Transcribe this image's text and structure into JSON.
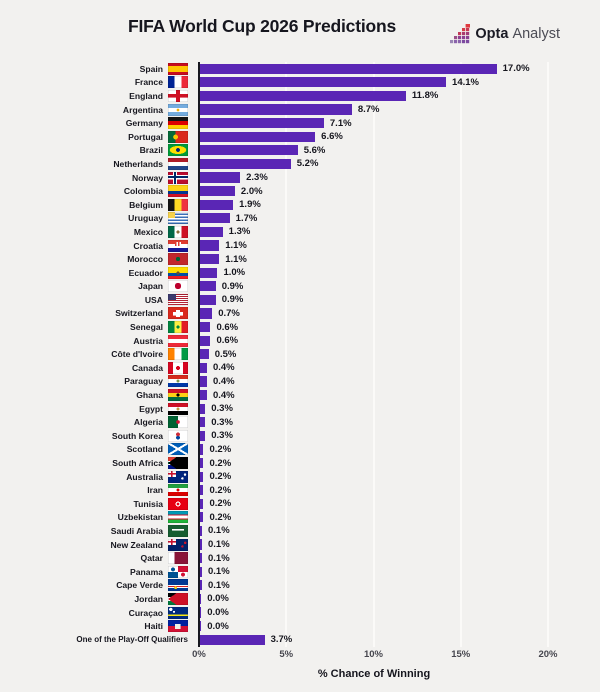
{
  "header": {
    "title": "FIFA World Cup 2026 Predictions",
    "logo": {
      "brand_bold": "Opta",
      "brand_light": "Analyst"
    }
  },
  "colors": {
    "background": "#f2f1ef",
    "bar": "#5a26b5",
    "axis_line": "#17171f",
    "gridline": "#fbfaf8",
    "logo_red": "#e0393e",
    "logo_purple": "#7d4aa0"
  },
  "chart_data": {
    "type": "bar",
    "orientation": "horizontal",
    "title": "FIFA World Cup 2026 Predictions",
    "xlabel": "% Chance of Winning",
    "xlim": [
      0,
      20.6
    ],
    "grid": true,
    "x_ticks": [
      {
        "value": 0,
        "label": "0%"
      },
      {
        "value": 5,
        "label": "5%"
      },
      {
        "value": 10,
        "label": "10%"
      },
      {
        "value": 15,
        "label": "15%"
      },
      {
        "value": 20,
        "label": "20%"
      }
    ],
    "rows": [
      {
        "label": "Spain",
        "value": 17.0,
        "display": "17.0%",
        "flag_name": "spain-flag-icon",
        "flag": "linear-gradient(180deg,#c60b1e 0 27%,#ffc400 27% 73%,#c60b1e 73%)"
      },
      {
        "label": "France",
        "value": 14.1,
        "display": "14.1%",
        "flag_name": "france-flag-icon",
        "flag": "linear-gradient(90deg,#002395 0 33%,#ffffff 33% 67%,#ed2939 67%)"
      },
      {
        "label": "England",
        "value": 11.8,
        "display": "11.8%",
        "flag_name": "england-flag-icon",
        "flag": "linear-gradient(#ce1124,#ce1124) 50% 0/20% 100% no-repeat, linear-gradient(#ce1124,#ce1124) 0 50%/100% 30% no-repeat, #ffffff"
      },
      {
        "label": "Argentina",
        "value": 8.7,
        "display": "8.7%",
        "flag_name": "argentina-flag-icon",
        "flag": "radial-gradient(circle at 50% 50%,#f6b40e 0 11%,transparent 12%), linear-gradient(180deg,#74acdf 0 33%,#ffffff 33% 67%,#74acdf 67%)"
      },
      {
        "label": "Germany",
        "value": 7.1,
        "display": "7.1%",
        "flag_name": "germany-flag-icon",
        "flag": "linear-gradient(180deg,#141414 0 33%,#dd0000 33% 67%,#ffce00 67%)"
      },
      {
        "label": "Portugal",
        "value": 6.6,
        "display": "6.6%",
        "flag_name": "portugal-flag-icon",
        "flag": "radial-gradient(circle at 38% 50%,#f7c600 0 17%,transparent 18%), linear-gradient(90deg,#046a38 0 38%,#da291c 38%)"
      },
      {
        "label": "Brazil",
        "value": 5.6,
        "display": "5.6%",
        "flag_name": "brazil-flag-icon",
        "flag": "radial-gradient(circle at 50% 50%,#012776 0 16%,transparent 17%), radial-gradient(42% 34% at 50% 50%,#fedf00 0 96%,transparent 100%), #009b3a"
      },
      {
        "label": "Netherlands",
        "value": 5.2,
        "display": "5.2%",
        "flag_name": "netherlands-flag-icon",
        "flag": "linear-gradient(180deg,#ae1c28 0 33%,#ffffff 33% 67%,#21468b 67%)"
      },
      {
        "label": "Norway",
        "value": 2.3,
        "display": "2.3%",
        "flag_name": "norway-flag-icon",
        "flag": "linear-gradient(#002868,#002868) 32% 0/11% 100% no-repeat, linear-gradient(#002868,#002868) 0 50%/100% 18% no-repeat, linear-gradient(#ffffff,#ffffff) 32% 0/22% 100% no-repeat, linear-gradient(#ffffff,#ffffff) 0 50%/100% 38% no-repeat, #ba0c2f"
      },
      {
        "label": "Colombia",
        "value": 2.0,
        "display": "2.0%",
        "flag_name": "colombia-flag-icon",
        "flag": "linear-gradient(180deg,#fcd116 0 50%,#003893 50% 75%,#ce1126 75%)"
      },
      {
        "label": "Belgium",
        "value": 1.9,
        "display": "1.9%",
        "flag_name": "belgium-flag-icon",
        "flag": "linear-gradient(90deg,#141414 0 33%,#fdda24 33% 67%,#ef3340 67%)"
      },
      {
        "label": "Uruguay",
        "value": 1.7,
        "display": "1.7%",
        "flag_name": "uruguay-flag-icon",
        "flag": "linear-gradient(#f6d24b,#f6d24b) 0 0/35% 50% no-repeat, repeating-linear-gradient(180deg,#ffffff 0 1.5px,#3a6fb7 1.5px 3px)"
      },
      {
        "label": "Mexico",
        "value": 1.3,
        "display": "1.3%",
        "flag_name": "mexico-flag-icon",
        "flag": "radial-gradient(circle at 50% 50%,#8a6d3b 0 13%,transparent 14%), linear-gradient(90deg,#006847 0 33%,#ffffff 33% 67%,#ce1126 67%)"
      },
      {
        "label": "Croatia",
        "value": 1.1,
        "display": "1.1%",
        "flag_name": "croatia-flag-icon",
        "flag": "repeating-linear-gradient(90deg,#e03c31 0 1.5px,#ffffff 1.5px 3px) 50% 2px/6px 4px no-repeat, linear-gradient(180deg,#e03c31 0 33%,#ffffff 33% 67%,#171796 67%)"
      },
      {
        "label": "Morocco",
        "value": 1.1,
        "display": "1.1%",
        "flag_name": "morocco-flag-icon",
        "flag": "radial-gradient(circle at 50% 50%,#006233 0 18%,transparent 19%), #c1272d"
      },
      {
        "label": "Ecuador",
        "value": 1.0,
        "display": "1.0%",
        "flag_name": "ecuador-flag-icon",
        "flag": "radial-gradient(circle at 50% 50%,#6b4f2e 0 13%,transparent 14%), linear-gradient(180deg,#ffdd00 0 50%,#034ea2 50% 75%,#ed1c24 75%)"
      },
      {
        "label": "Japan",
        "value": 0.9,
        "display": "0.9%",
        "flag_name": "japan-flag-icon",
        "flag": "radial-gradient(circle at 50% 50%,#bc002d 0 27%,transparent 28%), #ffffff"
      },
      {
        "label": "USA",
        "value": 0.9,
        "display": "0.9%",
        "flag_name": "usa-flag-icon",
        "flag": "linear-gradient(#3c3b6e,#3c3b6e) 0 0/42% 54% no-repeat, repeating-linear-gradient(180deg,#b22234 0 1px,#ffffff 1px 2px)"
      },
      {
        "label": "Switzerland",
        "value": 0.7,
        "display": "0.7%",
        "flag_name": "switzerland-flag-icon",
        "flag": "linear-gradient(#ffffff,#ffffff) 50% 50%/22% 62% no-repeat, linear-gradient(#ffffff,#ffffff) 50% 50%/52% 30% no-repeat, #da291c"
      },
      {
        "label": "Senegal",
        "value": 0.6,
        "display": "0.6%",
        "flag_name": "senegal-flag-icon",
        "flag": "radial-gradient(circle at 50% 50%,#00853f 0 13%,transparent 14%), linear-gradient(90deg,#00853f 0 33%,#fdef42 33% 67%,#e31b23 67%)"
      },
      {
        "label": "Austria",
        "value": 0.6,
        "display": "0.6%",
        "flag_name": "austria-flag-icon",
        "flag": "linear-gradient(180deg,#ed2939 0 33%,#ffffff 33% 67%,#ed2939 67%)"
      },
      {
        "label": "Côte d'Ivoire",
        "value": 0.5,
        "display": "0.5%",
        "flag_name": "cote-divoire-flag-icon",
        "flag": "linear-gradient(90deg,#ff8200 0 33%,#ffffff 33% 67%,#009a44 67%)"
      },
      {
        "label": "Canada",
        "value": 0.4,
        "display": "0.4%",
        "flag_name": "canada-flag-icon",
        "flag": "radial-gradient(circle at 50% 50%,#d80621 0 17%,transparent 18%), linear-gradient(90deg,#d80621 0 26%,#ffffff 26% 74%,#d80621 74%)"
      },
      {
        "label": "Paraguay",
        "value": 0.4,
        "display": "0.4%",
        "flag_name": "paraguay-flag-icon",
        "flag": "radial-gradient(circle at 50% 50%,#7c9a4e 0 12%,transparent 13%), linear-gradient(180deg,#d52b1e 0 33%,#ffffff 33% 67%,#0038a8 67%)"
      },
      {
        "label": "Ghana",
        "value": 0.4,
        "display": "0.4%",
        "flag_name": "ghana-flag-icon",
        "flag": "radial-gradient(circle at 50% 50%,#000000 0 13%,transparent 14%), linear-gradient(180deg,#ce1126 0 33%,#fcd116 33% 67%,#006b3f 67%)"
      },
      {
        "label": "Egypt",
        "value": 0.3,
        "display": "0.3%",
        "flag_name": "egypt-flag-icon",
        "flag": "radial-gradient(circle at 50% 50%,#c09c43 0 12%,transparent 13%), linear-gradient(180deg,#ce1126 0 33%,#ffffff 33% 67%,#000000 67%)"
      },
      {
        "label": "Algeria",
        "value": 0.3,
        "display": "0.3%",
        "flag_name": "algeria-flag-icon",
        "flag": "radial-gradient(circle at 50% 50%,#d21034 0 15%,transparent 16%), linear-gradient(90deg,#006233 0 50%,#ffffff 50%)"
      },
      {
        "label": "South Korea",
        "value": 0.3,
        "display": "0.3%",
        "flag_name": "south-korea-flag-icon",
        "flag": "radial-gradient(circle at 50% 36%,#cd2e3a 0 15%,transparent 16%), radial-gradient(circle at 50% 64%,#0047a0 0 15%,transparent 16%), #ffffff"
      },
      {
        "label": "Scotland",
        "value": 0.2,
        "display": "0.2%",
        "flag_name": "scotland-flag-icon",
        "flag": "linear-gradient(to bottom right,transparent 0 45%,#ffffff 45% 55%,transparent 55%), linear-gradient(to top right,transparent 0 45%,#ffffff 45% 55%,transparent 55%), #005eb8"
      },
      {
        "label": "South Africa",
        "value": 0.2,
        "display": "0.2%",
        "flag_name": "south-africa-flag-icon",
        "flag": "conic-gradient(from 55deg at 0% 50%,#000000 0 70deg,transparent 70deg), linear-gradient(180deg,#e03c31 0 33%,#ffffff 33% 40%,#007749 40% 60%,#ffffff 60% 67%,#001489 67%)"
      },
      {
        "label": "Australia",
        "value": 0.2,
        "display": "0.2%",
        "flag_name": "australia-flag-icon",
        "flag": "radial-gradient(circle at 72% 62%,#ffffff 0 7%,transparent 8%), radial-gradient(circle at 85% 30%,#ffffff 0 6%,transparent 7%), linear-gradient(#c8102e,#c8102e) 3.2px 0/1.6px 6px no-repeat, linear-gradient(#c8102e,#c8102e) 0 2.2px/8px 1.6px no-repeat, linear-gradient(#ffffff,#ffffff) 0 0/8px 6px no-repeat, #00247d"
      },
      {
        "label": "Iran",
        "value": 0.2,
        "display": "0.2%",
        "flag_name": "iran-flag-icon",
        "flag": "radial-gradient(circle at 50% 50%,#da0000 0 12%,transparent 13%), linear-gradient(180deg,#239f40 0 33%,#ffffff 33% 67%,#da0000 67%)"
      },
      {
        "label": "Tunisia",
        "value": 0.2,
        "display": "0.2%",
        "flag_name": "tunisia-flag-icon",
        "flag": "radial-gradient(circle at 50% 50%,#e70013 0 11%,transparent 12%), radial-gradient(circle at 50% 50%,#ffffff 0 21%,transparent 22%), #e70013"
      },
      {
        "label": "Uzbekistan",
        "value": 0.2,
        "display": "0.2%",
        "flag_name": "uzbekistan-flag-icon",
        "flag": "linear-gradient(180deg,#0099b5 0 31%,#ce1126 31% 37%,#ffffff 37% 63%,#ce1126 63% 69%,#1eb53a 69%)"
      },
      {
        "label": "Saudi Arabia",
        "value": 0.1,
        "display": "0.1%",
        "flag_name": "saudi-arabia-flag-icon",
        "flag": "linear-gradient(#ffffff,#ffffff) 50% 42%/62% 1.6px no-repeat, #165d31"
      },
      {
        "label": "New Zealand",
        "value": 0.1,
        "display": "0.1%",
        "flag_name": "new-zealand-flag-icon",
        "flag": "radial-gradient(circle at 72% 62%,#cc142b 0 7%,transparent 8%), radial-gradient(circle at 86% 32%,#cc142b 0 6%,transparent 7%), linear-gradient(#c8102e,#c8102e) 3.2px 0/1.6px 6px no-repeat, linear-gradient(#c8102e,#c8102e) 0 2.2px/8px 1.6px no-repeat, linear-gradient(#ffffff,#ffffff) 0 0/8px 6px no-repeat, #012169"
      },
      {
        "label": "Qatar",
        "value": 0.1,
        "display": "0.1%",
        "flag_name": "qatar-flag-icon",
        "flag": "linear-gradient(90deg,#ffffff 0 32%,#8a1538 32%)"
      },
      {
        "label": "Panama",
        "value": 0.1,
        "display": "0.1%",
        "flag_name": "panama-flag-icon",
        "flag": "radial-gradient(circle at 25% 28%,#005293 0 11%,transparent 12%), radial-gradient(circle at 75% 72%,#d21034 0 11%,transparent 12%), conic-gradient(from 0deg at 50% 50%,#d21034 0 25%,#ffffff 0 50%,#005293 0 75%,#ffffff 0)"
      },
      {
        "label": "Cape Verde",
        "value": 0.1,
        "display": "0.1%",
        "flag_name": "cape-verde-flag-icon",
        "flag": "radial-gradient(circle at 38% 72%,#f7d116 0 9%,transparent 10%), linear-gradient(180deg,#003893 0 50%,#ffffff 50% 58%,#cf2027 58% 68%,#ffffff 68% 76%,#003893 76%)"
      },
      {
        "label": "Jordan",
        "value": 0.0,
        "display": "0.0%",
        "flag_name": "jordan-flag-icon",
        "flag": "conic-gradient(from 55deg at 0% 50%,#ce1126 0 70deg,transparent 70deg), linear-gradient(180deg,#000000 0 33%,#ffffff 33% 67%,#007a3d 67%)"
      },
      {
        "label": "Curaçao",
        "value": 0.0,
        "display": "0.0%",
        "flag_name": "curacao-flag-icon",
        "flag": "radial-gradient(circle at 14% 20%,#ffffff 0 8%,transparent 9%), radial-gradient(circle at 30% 40%,#ffffff 0 6%,transparent 7%), linear-gradient(180deg,#002b7f 0 62%,#f9e814 62% 76%,#002b7f 76%)"
      },
      {
        "label": "Haiti",
        "value": 0.0,
        "display": "0.0%",
        "flag_name": "haiti-flag-icon",
        "flag": "linear-gradient(#f0f0e8,#f0f0e8) 50% 50%/28% 44% no-repeat, linear-gradient(180deg,#00209f 0 50%,#d21034 50%)"
      },
      {
        "label": "One of the Play-Off Qualifiers",
        "value": 3.7,
        "display": "3.7%",
        "flag_name": null,
        "flag": null
      }
    ]
  }
}
